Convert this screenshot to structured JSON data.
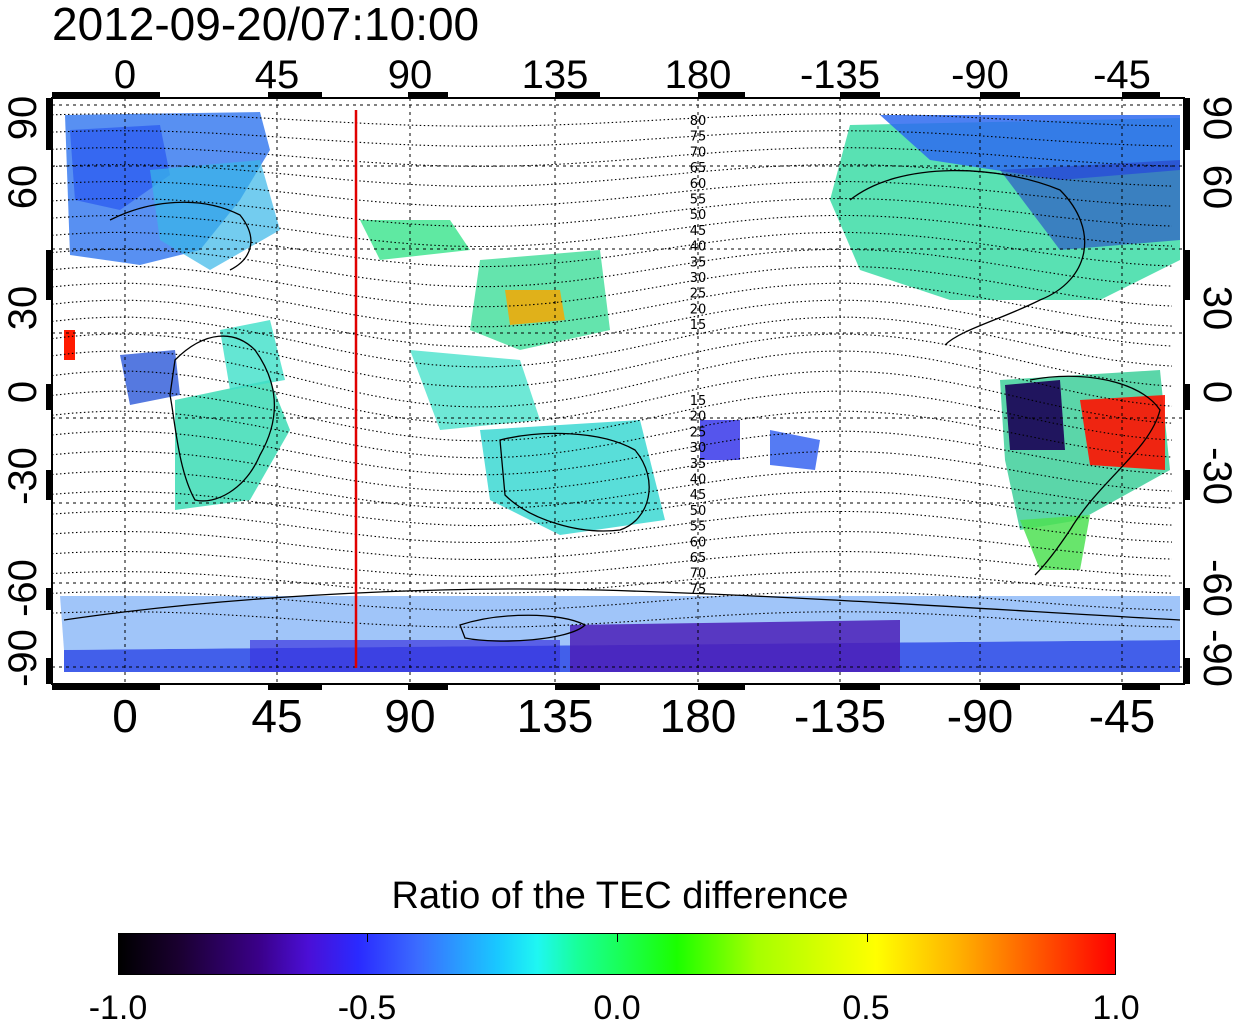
{
  "header": {
    "timestamp": "2012-09-20/07:10:00"
  },
  "map": {
    "type": "global TEC difference map",
    "lon_ticks": [
      "0",
      "45",
      "90",
      "135",
      "180",
      "-135",
      "-90",
      "-45"
    ],
    "lat_ticks_left": [
      "90",
      "60",
      "30",
      "0",
      "-30",
      "-60",
      "-90"
    ],
    "lat_ticks_right": [
      "90",
      "60",
      "30",
      "0",
      "-30",
      "-60",
      "-90"
    ],
    "contour_labels_north": [
      "80",
      "75",
      "70",
      "65",
      "60",
      "55",
      "50",
      "45",
      "40",
      "35",
      "30",
      "25",
      "20",
      "15"
    ],
    "contour_labels_south": [
      "15",
      "20",
      "25",
      "30",
      "35",
      "40",
      "45",
      "50",
      "55",
      "60",
      "65",
      "70",
      "75"
    ],
    "marker_line_longitude_label": "~75",
    "marker_line_color": "#e00000"
  },
  "colorbar": {
    "title": "Ratio of the TEC difference",
    "tick_labels": [
      "-1.0",
      "-0.5",
      "0.0",
      "0.5",
      "1.0"
    ],
    "range": [
      -1.0,
      1.0
    ]
  }
}
